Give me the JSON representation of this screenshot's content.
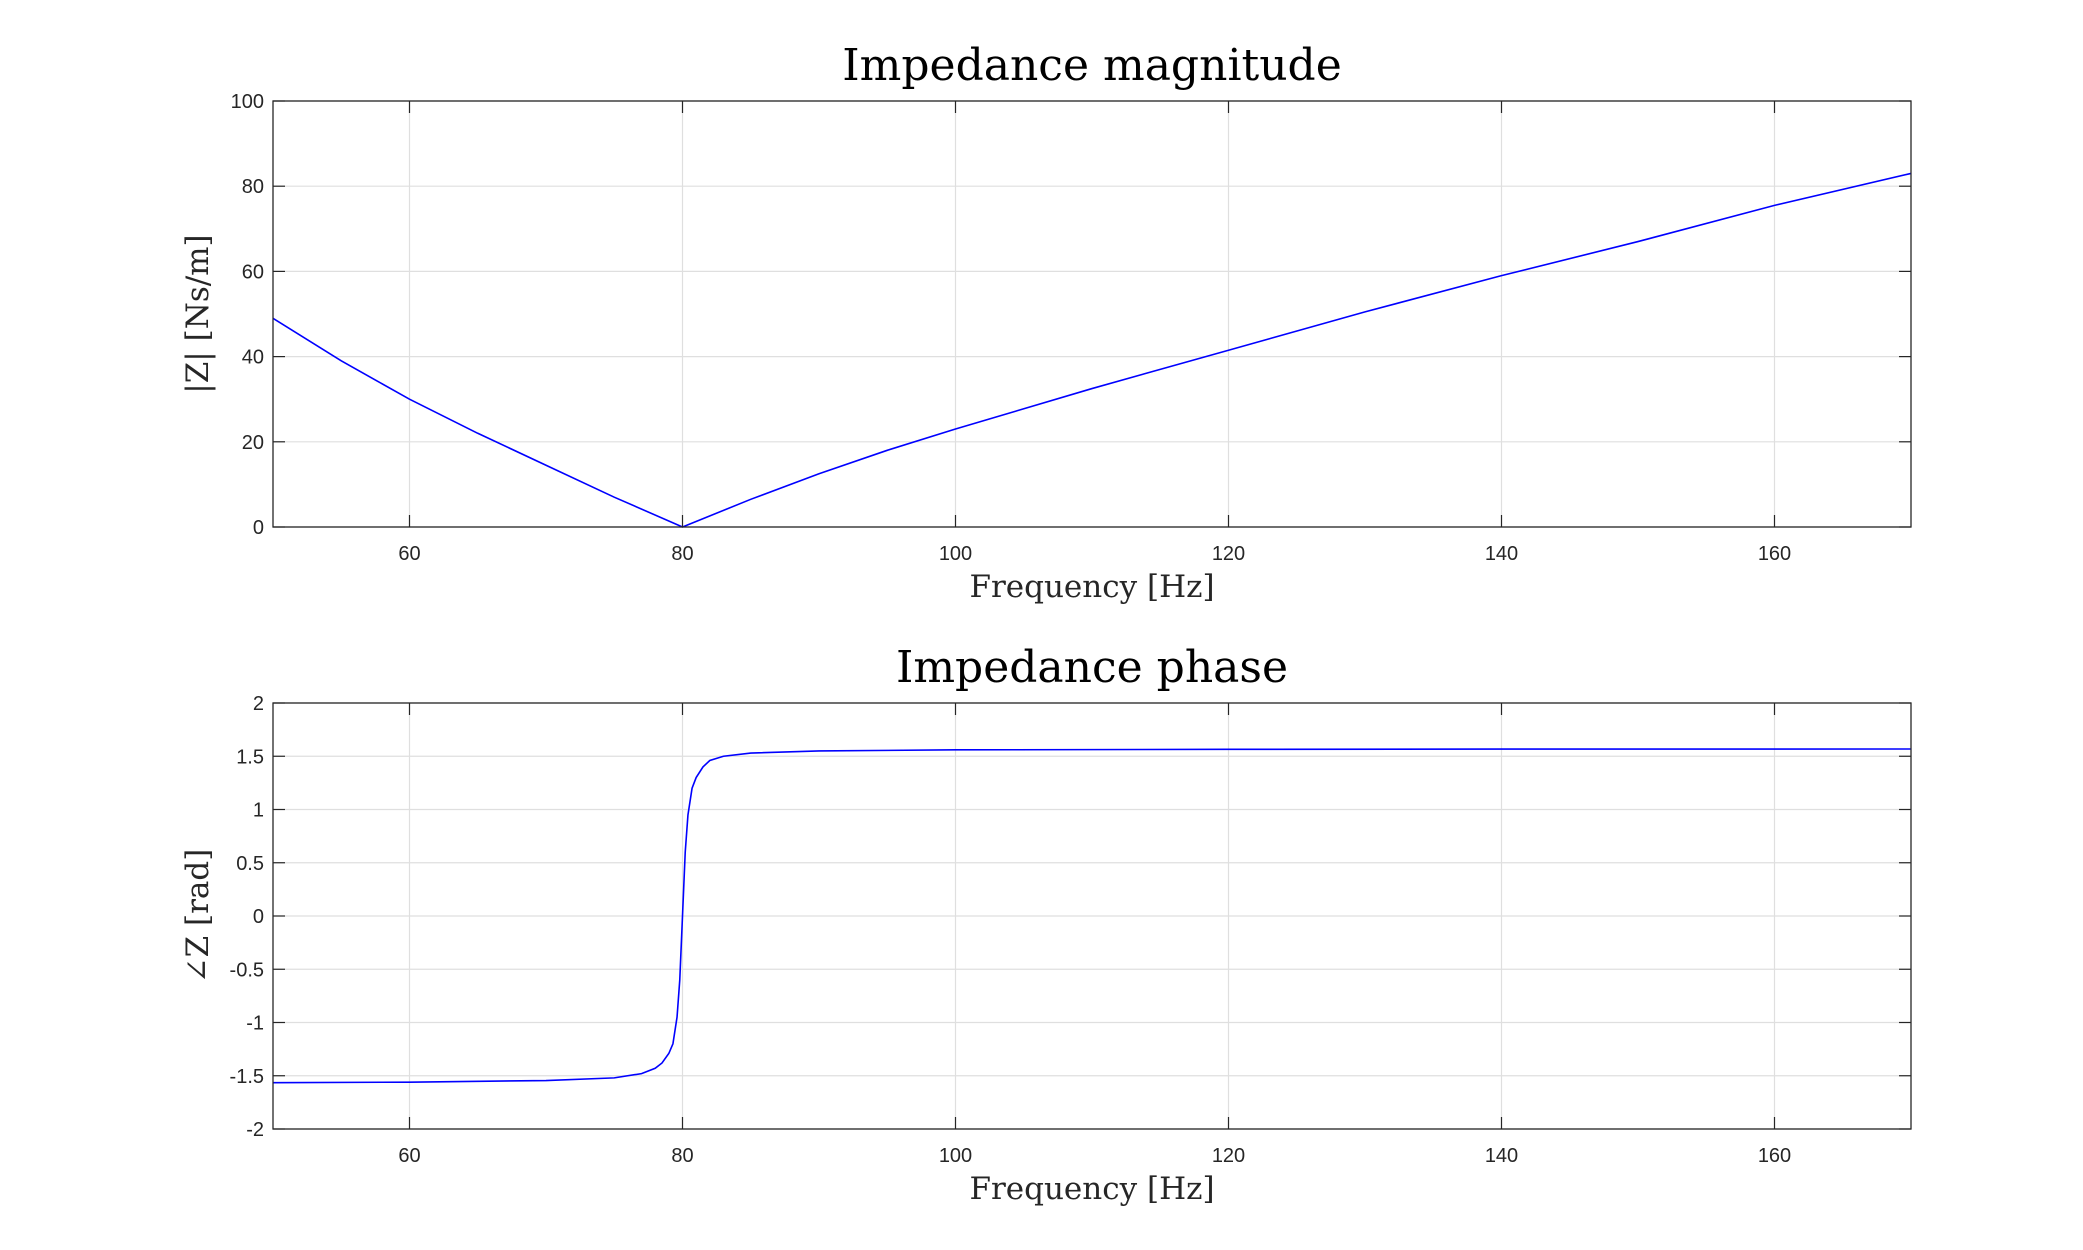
{
  "chart_data": [
    {
      "type": "line",
      "title": "Impedance magnitude",
      "xlabel": "Frequency [Hz]",
      "ylabel": "|Z| [Ns/m]",
      "xlim": [
        50,
        170
      ],
      "ylim": [
        0,
        100
      ],
      "xticks": [
        60,
        80,
        100,
        120,
        140,
        160
      ],
      "yticks": [
        0,
        20,
        40,
        60,
        80,
        100
      ],
      "grid": true,
      "color": "#0000ff",
      "series": [
        {
          "x": [
            50,
            55,
            60,
            65,
            70,
            75,
            80,
            85,
            90,
            95,
            100,
            110,
            120,
            130,
            140,
            150,
            160,
            170
          ],
          "values": [
            49,
            39,
            30,
            22,
            14.5,
            7,
            0,
            6.5,
            12.5,
            18,
            23,
            32.5,
            41.5,
            50.5,
            59,
            67,
            75.5,
            83
          ]
        }
      ]
    },
    {
      "type": "line",
      "title": "Impedance phase",
      "xlabel": "Frequency [Hz]",
      "ylabel": "∠Z [rad]",
      "xlim": [
        50,
        170
      ],
      "ylim": [
        -2,
        2
      ],
      "xticks": [
        60,
        80,
        100,
        120,
        140,
        160
      ],
      "yticks": [
        -2,
        -1.5,
        -1,
        -0.5,
        0,
        0.5,
        1,
        1.5,
        2
      ],
      "grid": true,
      "color": "#0000ff",
      "series": [
        {
          "x": [
            50,
            60,
            70,
            75,
            77,
            78,
            78.5,
            79,
            79.3,
            79.6,
            79.8,
            80,
            80.2,
            80.4,
            80.7,
            81,
            81.5,
            82,
            83,
            85,
            90,
            100,
            120,
            140,
            170
          ],
          "values": [
            -1.565,
            -1.56,
            -1.545,
            -1.52,
            -1.48,
            -1.43,
            -1.38,
            -1.29,
            -1.2,
            -0.95,
            -0.6,
            0,
            0.6,
            0.95,
            1.2,
            1.3,
            1.4,
            1.46,
            1.5,
            1.53,
            1.55,
            1.56,
            1.565,
            1.567,
            1.568
          ]
        }
      ]
    }
  ]
}
